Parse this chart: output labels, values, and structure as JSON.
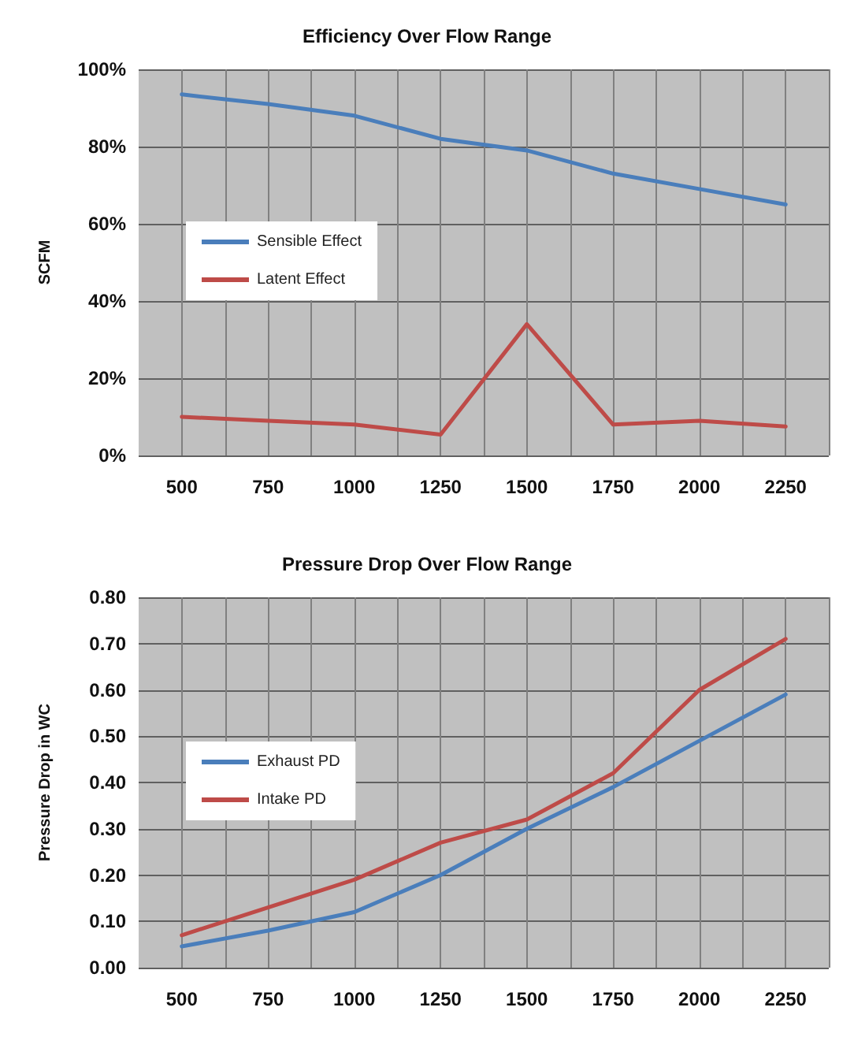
{
  "chart_data": [
    {
      "type": "line",
      "title": "Efficiency Over Flow Range",
      "ylabel": "SCFM",
      "x": [
        500,
        750,
        1000,
        1250,
        1500,
        1750,
        2000,
        2250
      ],
      "xlim": [
        375,
        2375
      ],
      "xticks": [
        500,
        {
          "value": 625,
          "label": null
        },
        750,
        {
          "value": 875,
          "label": null
        },
        1000,
        {
          "value": 1125,
          "label": null
        },
        1250,
        {
          "value": 1375,
          "label": null
        },
        1500,
        {
          "value": 1625,
          "label": null
        },
        1750,
        {
          "value": 1875,
          "label": null
        },
        2000,
        {
          "value": 2125,
          "label": null
        },
        2250,
        {
          "value": 2375,
          "label": null
        }
      ],
      "ylim": [
        0,
        100
      ],
      "yticks": [
        {
          "value": 0,
          "label": "0%"
        },
        {
          "value": 20,
          "label": "20%"
        },
        {
          "value": 40,
          "label": "40%"
        },
        {
          "value": 60,
          "label": "60%"
        },
        {
          "value": 80,
          "label": "80%"
        },
        {
          "value": 100,
          "label": "100%"
        }
      ],
      "series": [
        {
          "name": "Sensible Effect",
          "color": "#4a7ebb",
          "values": [
            93.5,
            91,
            88,
            82,
            79,
            73,
            69,
            65
          ]
        },
        {
          "name": "Latent Effect",
          "color": "#be4b48",
          "values": [
            10,
            9,
            8,
            5.4,
            34,
            8,
            9,
            7.5
          ]
        }
      ],
      "grid": true,
      "legend": "left",
      "marker": "none",
      "line_style": "solid"
    },
    {
      "type": "line",
      "title": "Pressure Drop Over Flow Range",
      "ylabel": "Pressure Drop in WC",
      "x": [
        500,
        750,
        1000,
        1250,
        1500,
        1750,
        2000,
        2250
      ],
      "xlim": [
        375,
        2375
      ],
      "xticks": [
        500,
        {
          "value": 625,
          "label": null
        },
        750,
        {
          "value": 875,
          "label": null
        },
        1000,
        {
          "value": 1125,
          "label": null
        },
        1250,
        {
          "value": 1375,
          "label": null
        },
        1500,
        {
          "value": 1625,
          "label": null
        },
        1750,
        {
          "value": 1875,
          "label": null
        },
        2000,
        {
          "value": 2125,
          "label": null
        },
        2250,
        {
          "value": 2375,
          "label": null
        }
      ],
      "ylim": [
        0,
        0.8
      ],
      "yticks": [
        {
          "value": 0,
          "label": "0.00"
        },
        {
          "value": 0.1,
          "label": "0.10"
        },
        {
          "value": 0.2,
          "label": "0.20"
        },
        {
          "value": 0.3,
          "label": "0.30"
        },
        {
          "value": 0.4,
          "label": "0.40"
        },
        {
          "value": 0.5,
          "label": "0.50"
        },
        {
          "value": 0.6,
          "label": "0.60"
        },
        {
          "value": 0.7,
          "label": "0.70"
        },
        {
          "value": 0.8,
          "label": "0.80"
        }
      ],
      "series": [
        {
          "name": "Exhaust PD",
          "color": "#4a7ebb",
          "values": [
            0.046,
            0.08,
            0.12,
            0.2,
            0.3,
            0.39,
            0.49,
            0.59
          ]
        },
        {
          "name": "Intake PD",
          "color": "#be4b48",
          "values": [
            0.07,
            0.13,
            0.19,
            0.27,
            0.32,
            0.42,
            0.6,
            0.71
          ]
        }
      ],
      "grid": true,
      "legend": "left",
      "marker": "none",
      "line_style": "solid"
    }
  ]
}
